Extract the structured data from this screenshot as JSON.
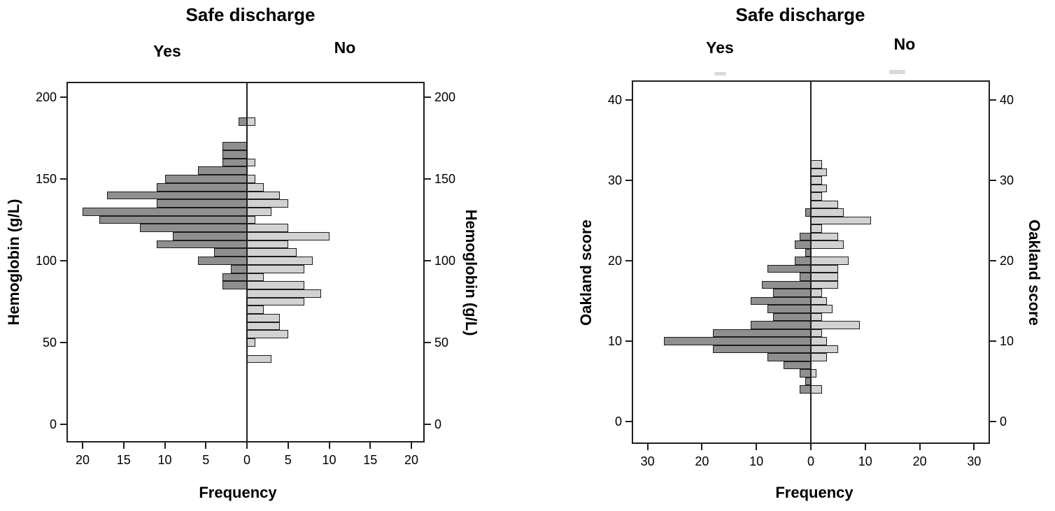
{
  "colors": {
    "yes_fill": "#8f8f8f",
    "no_fill": "#d2d2d2",
    "bar_border": "#1c1c1c",
    "frame": "#1f1f1f",
    "text": "#000000"
  },
  "chart_data": [
    {
      "type": "bar",
      "subtype": "population-pyramid-histogram",
      "title": "Safe discharge",
      "panel_labels": [
        "Yes",
        "No"
      ],
      "ylabel_left": "Hemoglobin (g/L)",
      "ylabel_right": "Hemoglobin (g/L)",
      "xlabel": "Frequency",
      "grid": false,
      "bin_width": 5,
      "ylim": [
        0,
        210
      ],
      "xlim_each_side": [
        0,
        22
      ],
      "y_ticks": [
        0,
        50,
        100,
        150,
        200
      ],
      "x_tick_labels": [
        20,
        15,
        10,
        5,
        0,
        5,
        10,
        15,
        20
      ],
      "bins": [
        40,
        45,
        50,
        55,
        60,
        65,
        70,
        75,
        80,
        85,
        90,
        95,
        100,
        105,
        110,
        115,
        120,
        125,
        130,
        135,
        140,
        145,
        150,
        155,
        160,
        165,
        170,
        175,
        180,
        185
      ],
      "series": [
        {
          "name": "Yes",
          "side": "left",
          "values": [
            0,
            0,
            0,
            0,
            0,
            0,
            0,
            0,
            0,
            3,
            3,
            2,
            6,
            4,
            11,
            9,
            13,
            18,
            20,
            11,
            17,
            11,
            10,
            6,
            3,
            3,
            3,
            0,
            0,
            1
          ]
        },
        {
          "name": "No",
          "side": "right",
          "values": [
            3,
            0,
            1,
            5,
            4,
            4,
            2,
            7,
            9,
            7,
            2,
            7,
            8,
            6,
            5,
            10,
            5,
            1,
            3,
            5,
            4,
            2,
            1,
            0,
            1,
            0,
            0,
            0,
            0,
            1
          ]
        }
      ]
    },
    {
      "type": "bar",
      "subtype": "population-pyramid-histogram",
      "title": "Safe discharge",
      "panel_labels": [
        "Yes",
        "No"
      ],
      "ylabel_left": "Oakland score",
      "ylabel_right": "Oakland score",
      "xlabel": "Frequency",
      "grid": false,
      "bin_width": 1,
      "ylim": [
        0,
        42
      ],
      "xlim_each_side": [
        0,
        33
      ],
      "y_ticks": [
        0,
        10,
        20,
        30,
        40
      ],
      "x_tick_labels": [
        30,
        20,
        10,
        0,
        10,
        20,
        30
      ],
      "bins": [
        3,
        4,
        5,
        6,
        7,
        8,
        9,
        10,
        11,
        12,
        13,
        14,
        15,
        16,
        17,
        18,
        19,
        20,
        21,
        22,
        23,
        24,
        25,
        26,
        27,
        28,
        29,
        30,
        31,
        32
      ],
      "series": [
        {
          "name": "Yes",
          "side": "left",
          "values": [
            0,
            2,
            1,
            2,
            5,
            8,
            18,
            27,
            18,
            11,
            7,
            8,
            11,
            7,
            9,
            2,
            8,
            3,
            1,
            3,
            2,
            0,
            0,
            1,
            0,
            0,
            0,
            0,
            0,
            0
          ]
        },
        {
          "name": "No",
          "side": "right",
          "values": [
            0,
            2,
            0,
            1,
            0,
            3,
            5,
            3,
            2,
            9,
            2,
            4,
            3,
            2,
            5,
            5,
            5,
            7,
            0,
            6,
            5,
            2,
            11,
            6,
            5,
            2,
            3,
            2,
            3,
            2
          ]
        }
      ]
    }
  ]
}
